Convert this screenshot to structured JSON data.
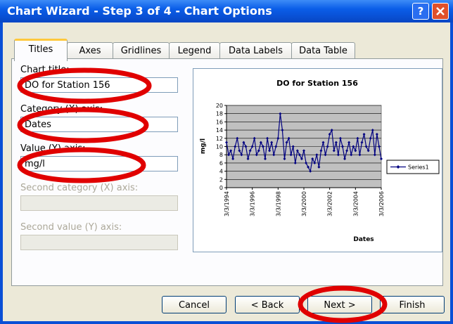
{
  "window": {
    "title": "Chart Wizard - Step 3 of 4 - Chart Options",
    "help_button": "?"
  },
  "tabs": [
    "Titles",
    "Axes",
    "Gridlines",
    "Legend",
    "Data Labels",
    "Data Table"
  ],
  "fields": [
    {
      "label": "Chart title:",
      "value": "DO for Station 156"
    },
    {
      "label": "Category (X) axis:",
      "value": "Dates"
    },
    {
      "label": "Value (Y) axis:",
      "value": "mg/l"
    },
    {
      "label": "Second category (X) axis:"
    },
    {
      "label": "Second value (Y) axis:"
    }
  ],
  "buttons": [
    "Cancel",
    "< Back",
    "Next >",
    "Finish"
  ],
  "chart_data": {
    "type": "line",
    "title": "DO for Station 156",
    "x_label": "Dates",
    "y_label": "mg/l",
    "categories": [
      "3/3/1994",
      null,
      null,
      null,
      null,
      null,
      null,
      null,
      null,
      null,
      null,
      null,
      "3/3/1996",
      null,
      null,
      null,
      null,
      null,
      null,
      null,
      null,
      null,
      null,
      null,
      "3/3/1998",
      null,
      null,
      null,
      null,
      null,
      null,
      null,
      null,
      null,
      null,
      null,
      "3/3/2000",
      null,
      null,
      null,
      null,
      null,
      null,
      null,
      null,
      null,
      null,
      null,
      "3/3/2002",
      null,
      null,
      null,
      null,
      null,
      null,
      null,
      null,
      null,
      null,
      null,
      "3/3/2004",
      null,
      null,
      null,
      null,
      null,
      null,
      null,
      null,
      null,
      null,
      null,
      "3/3/2006"
    ],
    "series": [
      {
        "name": "Series1",
        "color": "#000080",
        "values": [
          11,
          8,
          9,
          7,
          10,
          12,
          9,
          8,
          11,
          10,
          7,
          9,
          10,
          12,
          8,
          9,
          11,
          10,
          7,
          12,
          9,
          11,
          8,
          10,
          12,
          18,
          14,
          7,
          11,
          12,
          8,
          10,
          6,
          9,
          8,
          7,
          9,
          6,
          5,
          4,
          7,
          6,
          8,
          5,
          9,
          11,
          8,
          10,
          13,
          14,
          9,
          11,
          8,
          12,
          10,
          7,
          9,
          11,
          8,
          10,
          9,
          12,
          8,
          11,
          13,
          10,
          9,
          12,
          14,
          8,
          13,
          10,
          7
        ]
      }
    ],
    "ylim": [
      0,
      20
    ],
    "yticks": [
      0,
      2,
      4,
      6,
      8,
      10,
      12,
      14,
      16,
      18,
      20
    ],
    "grid": true,
    "legend": "right"
  }
}
